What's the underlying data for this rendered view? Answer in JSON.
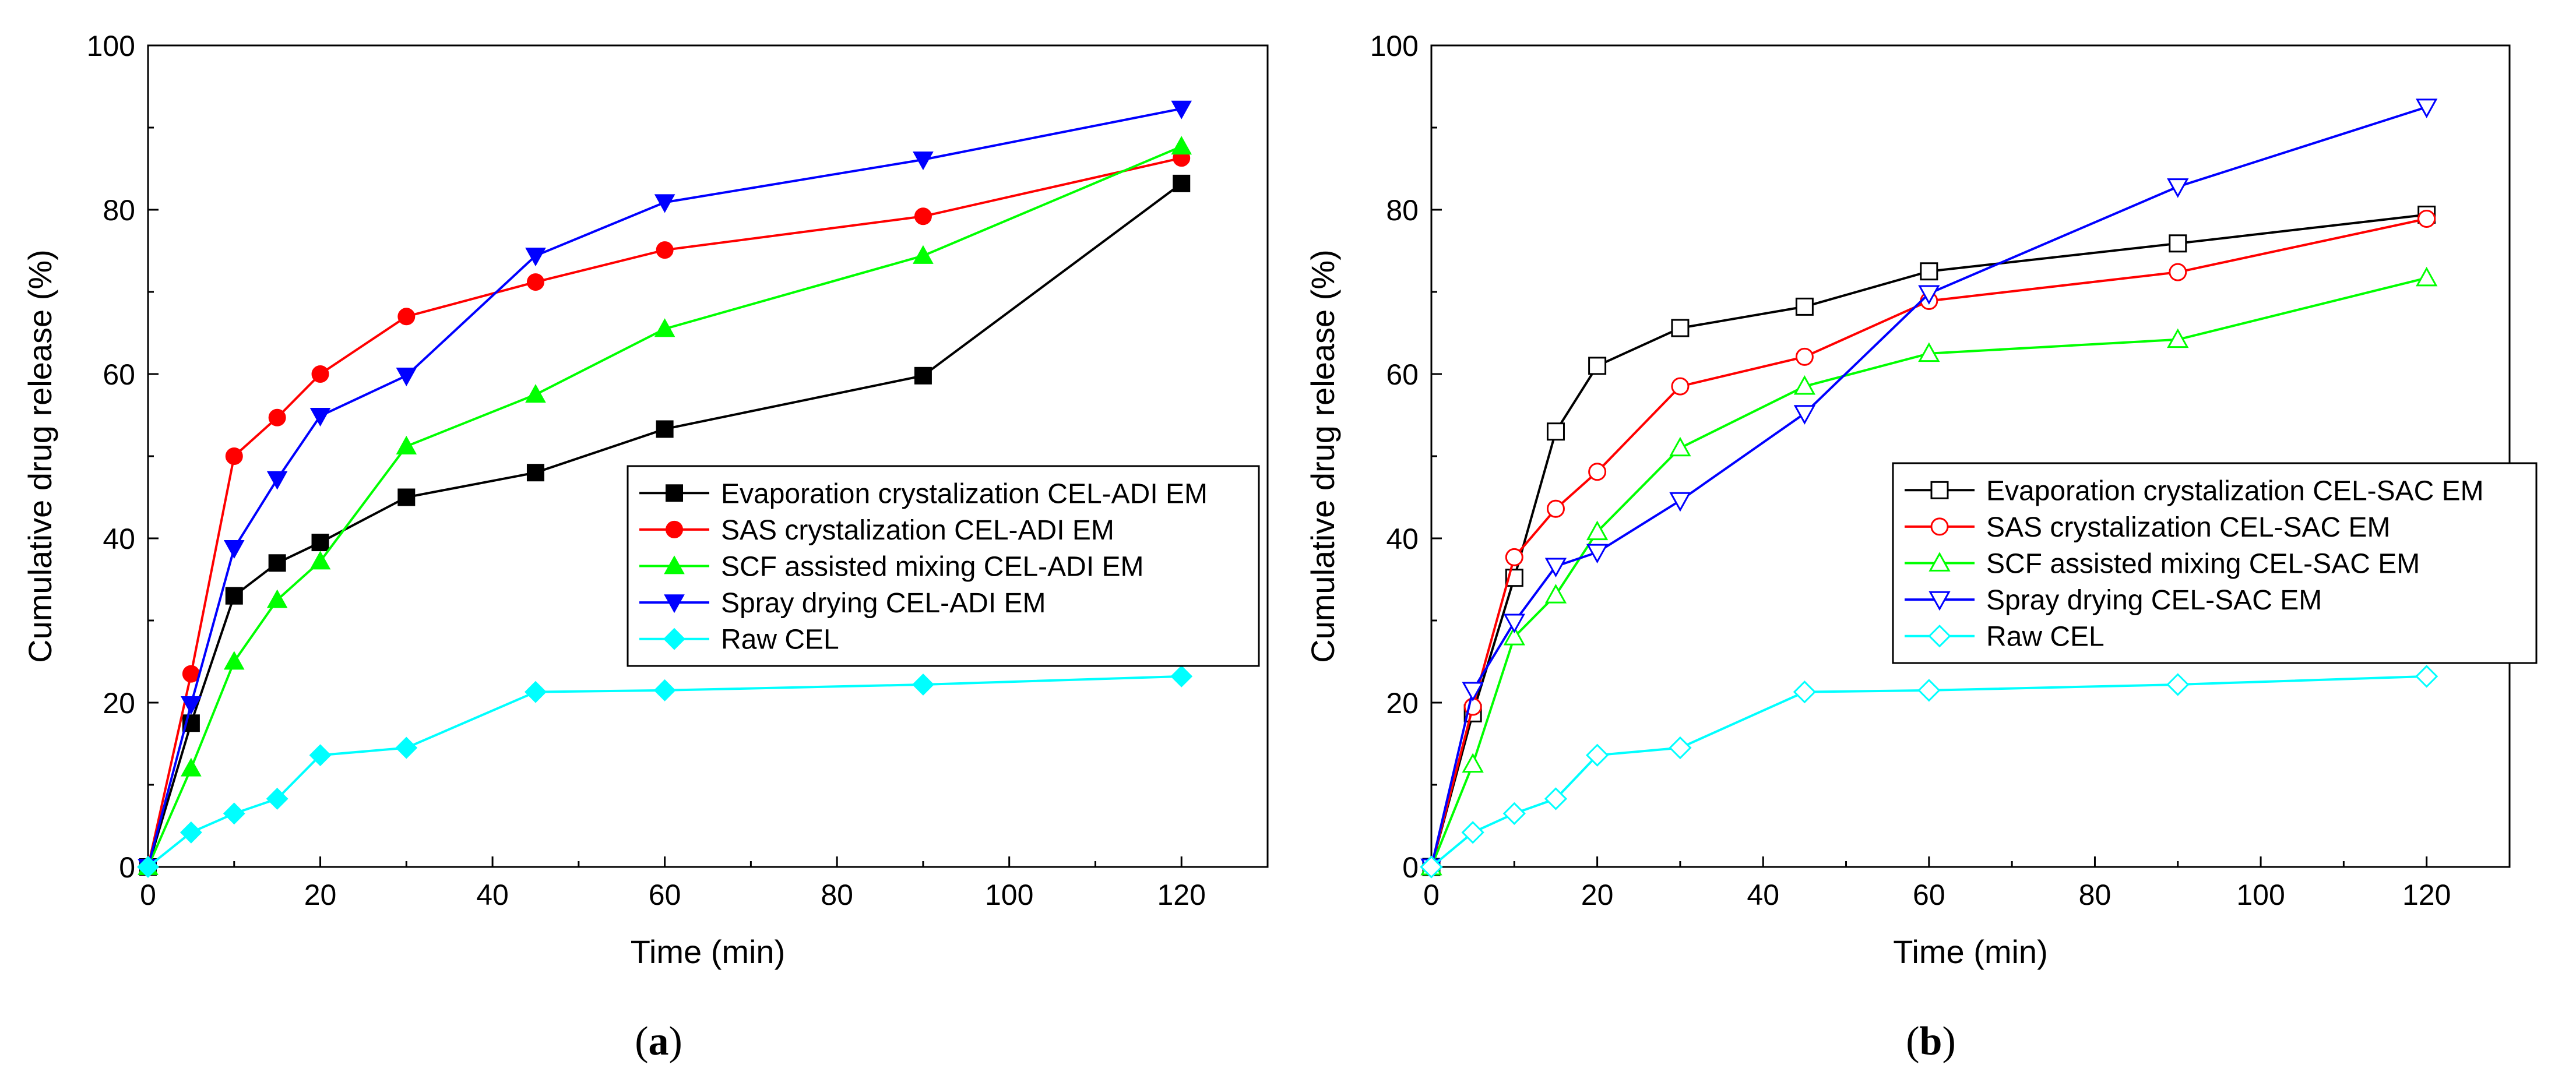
{
  "chart_data": [
    {
      "type": "line",
      "panel_label": "a",
      "caption_open": "(",
      "caption_close": ")",
      "xlabel": "Time (min)",
      "ylabel": "Cumulative drug release (%)",
      "xlim": [
        0,
        130
      ],
      "ylim": [
        0,
        100
      ],
      "xticks": [
        0,
        20,
        40,
        60,
        80,
        100,
        120
      ],
      "yticks": [
        0,
        20,
        40,
        60,
        80,
        100
      ],
      "grid": false,
      "legend_position": "center-right",
      "series": [
        {
          "name": "Evaporation crystalization CEL-ADI EM",
          "color": "#000000",
          "marker": "square",
          "filled": true,
          "x": [
            0,
            5,
            10,
            15,
            20,
            30,
            45,
            60,
            90,
            120
          ],
          "y": [
            0,
            17.5,
            33,
            37,
            39.5,
            45,
            48,
            53.3,
            59.8,
            83.2
          ]
        },
        {
          "name": "SAS crystalization CEL-ADI EM",
          "color": "#ff0000",
          "marker": "circle",
          "filled": true,
          "x": [
            0,
            5,
            10,
            15,
            20,
            30,
            45,
            60,
            90,
            120
          ],
          "y": [
            0,
            23.5,
            50,
            54.7,
            60,
            67,
            71.2,
            75.1,
            79.2,
            86.3
          ]
        },
        {
          "name": "SCF assisted mixing CEL-ADI EM",
          "color": "#00ff00",
          "marker": "triangle-up",
          "filled": true,
          "x": [
            0,
            5,
            10,
            15,
            20,
            30,
            45,
            60,
            90,
            120
          ],
          "y": [
            0,
            12,
            25,
            32.5,
            37.2,
            51.2,
            57.5,
            65.5,
            74.4,
            87.7
          ]
        },
        {
          "name": "Spray drying CEL-ADI EM",
          "color": "#0000ff",
          "marker": "triangle-down",
          "filled": true,
          "x": [
            0,
            5,
            10,
            15,
            20,
            30,
            45,
            60,
            90,
            120
          ],
          "y": [
            0,
            19.8,
            38.8,
            47.2,
            54.9,
            59.8,
            74.4,
            80.9,
            86.1,
            92.3
          ]
        },
        {
          "name": "Raw CEL",
          "color": "#00ffff",
          "marker": "diamond",
          "filled": true,
          "x": [
            0,
            5,
            10,
            15,
            20,
            30,
            45,
            60,
            90,
            120
          ],
          "y": [
            0,
            4.2,
            6.5,
            8.3,
            13.6,
            14.5,
            21.3,
            21.5,
            22.2,
            23.2
          ]
        }
      ]
    },
    {
      "type": "line",
      "panel_label": "b",
      "caption_open": "(",
      "caption_close": ")",
      "xlabel": "Time (min)",
      "ylabel": "Cumulative drug release (%)",
      "xlim": [
        0,
        130
      ],
      "ylim": [
        0,
        100
      ],
      "xticks": [
        0,
        20,
        40,
        60,
        80,
        100,
        120
      ],
      "yticks": [
        0,
        20,
        40,
        60,
        80,
        100
      ],
      "grid": false,
      "legend_position": "center-right",
      "series": [
        {
          "name": "Evaporation crystalization CEL-SAC EM",
          "color": "#000000",
          "marker": "square",
          "filled": false,
          "x": [
            0,
            5,
            10,
            15,
            20,
            30,
            45,
            60,
            90,
            120
          ],
          "y": [
            0,
            18.7,
            35.2,
            53,
            61,
            65.6,
            68.2,
            72.5,
            75.9,
            79.4
          ]
        },
        {
          "name": "SAS crystalization CEL-SAC EM",
          "color": "#ff0000",
          "marker": "circle",
          "filled": false,
          "x": [
            0,
            5,
            10,
            15,
            20,
            30,
            45,
            60,
            90,
            120
          ],
          "y": [
            0,
            19.5,
            37.7,
            43.6,
            48.1,
            58.5,
            62.1,
            68.9,
            72.4,
            78.9
          ]
        },
        {
          "name": "SCF assisted mixing CEL-SAC EM",
          "color": "#00ff00",
          "marker": "triangle-up",
          "filled": false,
          "x": [
            0,
            5,
            10,
            15,
            20,
            30,
            45,
            60,
            90,
            120
          ],
          "y": [
            0,
            12.5,
            28,
            33.1,
            40.8,
            51,
            58.5,
            62.5,
            64.2,
            71.7
          ]
        },
        {
          "name": "Spray drying CEL-SAC EM",
          "color": "#0000ff",
          "marker": "triangle-down",
          "filled": false,
          "x": [
            0,
            5,
            10,
            15,
            20,
            30,
            45,
            60,
            90,
            120
          ],
          "y": [
            0,
            21.5,
            29.8,
            36.6,
            38.3,
            44.6,
            55.2,
            69.8,
            82.8,
            92.5
          ]
        },
        {
          "name": "Raw CEL",
          "color": "#00ffff",
          "marker": "diamond",
          "filled": false,
          "x": [
            0,
            5,
            10,
            15,
            20,
            30,
            45,
            60,
            90,
            120
          ],
          "y": [
            0,
            4.2,
            6.5,
            8.3,
            13.6,
            14.5,
            21.3,
            21.5,
            22.2,
            23.2
          ]
        }
      ]
    }
  ]
}
